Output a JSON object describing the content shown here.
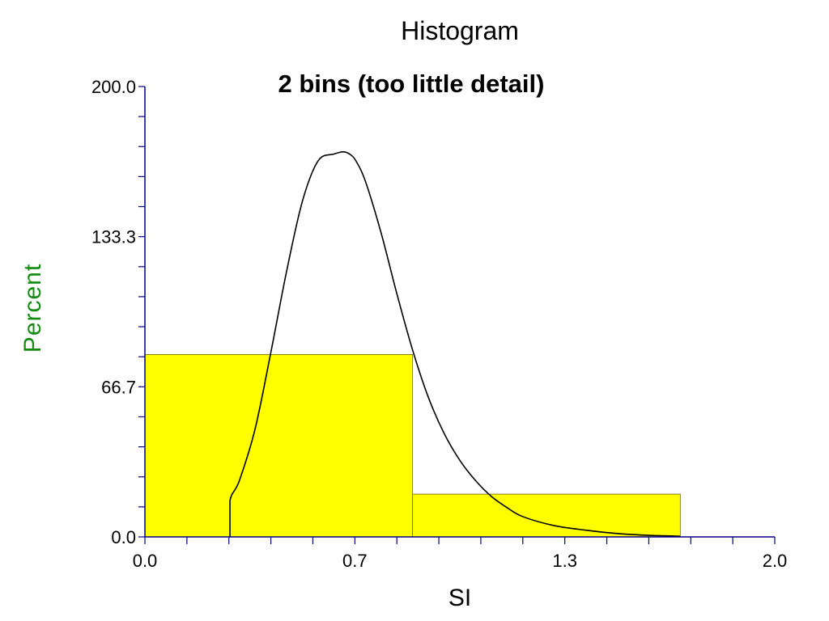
{
  "chart_data": {
    "type": "histogram",
    "title": "Histogram",
    "subtitle": "2 bins (too little detail)",
    "xlabel": "SI",
    "ylabel": "Percent",
    "xlim": [
      0.0,
      2.0
    ],
    "ylim": [
      0.0,
      200.0
    ],
    "x_ticks": [
      "0.0",
      "0.7",
      "1.3",
      "2.0"
    ],
    "y_ticks": [
      "0.0",
      "66.7",
      "133.3",
      "200.0"
    ],
    "bins": [
      {
        "x0": 0.0,
        "x1": 0.85,
        "value": 81
      },
      {
        "x0": 0.85,
        "x1": 1.7,
        "value": 19
      }
    ],
    "density_curve": {
      "x": [
        0.27,
        0.27,
        0.3,
        0.35,
        0.4,
        0.45,
        0.5,
        0.55,
        0.6,
        0.63,
        0.65,
        0.67,
        0.7,
        0.75,
        0.8,
        0.85,
        0.9,
        0.95,
        1.0,
        1.05,
        1.1,
        1.15,
        1.2,
        1.3,
        1.4,
        1.5,
        1.6,
        1.7
      ],
      "y": [
        0,
        16,
        25,
        48,
        82,
        118,
        149,
        167,
        170,
        171,
        170,
        167,
        158,
        135,
        108,
        83,
        62,
        46,
        34,
        25,
        18,
        13,
        9,
        5,
        3,
        1.5,
        0.7,
        0.3
      ]
    },
    "colors": {
      "bar_fill": "#ffff00",
      "axis": "#000080",
      "ylabel": "#138a13",
      "curve": "#000000"
    },
    "grid": false,
    "legend": "none"
  }
}
